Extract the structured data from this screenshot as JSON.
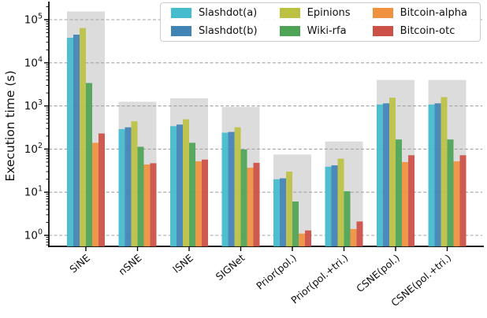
{
  "chart_data": {
    "type": "bar",
    "yscale": "log",
    "title": "",
    "xlabel": "",
    "ylabel": "Execution time (s)",
    "ylim": [
      0.55,
      260000
    ],
    "yticks": [
      1,
      10,
      100,
      1000,
      10000,
      100000
    ],
    "grid": true,
    "gridline_color": "#a3a3a3",
    "band_color": "#dcdcdc",
    "axis_color": "#000000",
    "legend_position": "upper right",
    "legend_ncol": 3,
    "categories": [
      "SiNE",
      "nSNE",
      "lSNE",
      "SIGNet",
      "Prior(pol.)",
      "Prior(pol.+tri.)",
      "CSNE(pol.)",
      "CSNE(pol.+tri.)"
    ],
    "series": [
      {
        "name": "Slashdot(a)",
        "color": "#44bccd",
        "values": [
          38000,
          290,
          340,
          240,
          20,
          39,
          1080,
          1080
        ]
      },
      {
        "name": "Slashdot(b)",
        "color": "#4283b6",
        "values": [
          45000,
          320,
          370,
          250,
          21,
          42,
          1150,
          1150
        ]
      },
      {
        "name": "Epinions",
        "color": "#bcc144",
        "values": [
          64000,
          440,
          490,
          320,
          30,
          60,
          1550,
          1600
        ]
      },
      {
        "name": "Wiki-rfa",
        "color": "#4da456",
        "values": [
          3400,
          113,
          140,
          98,
          6.1,
          10.5,
          167,
          167
        ]
      },
      {
        "name": "Bitcoin-alpha",
        "color": "#f0913f",
        "values": [
          140,
          44,
          52,
          37,
          1.1,
          1.4,
          50,
          52
        ]
      },
      {
        "name": "Bitcoin-otc",
        "color": "#cd5047",
        "values": [
          230,
          47,
          57,
          48,
          1.3,
          2.1,
          72,
          72
        ]
      }
    ],
    "background_band": {
      "name": "group-total-band",
      "color": "#dcdcdc",
      "values": [
        155000,
        1250,
        1500,
        950,
        75,
        150,
        4000,
        4000
      ]
    }
  }
}
